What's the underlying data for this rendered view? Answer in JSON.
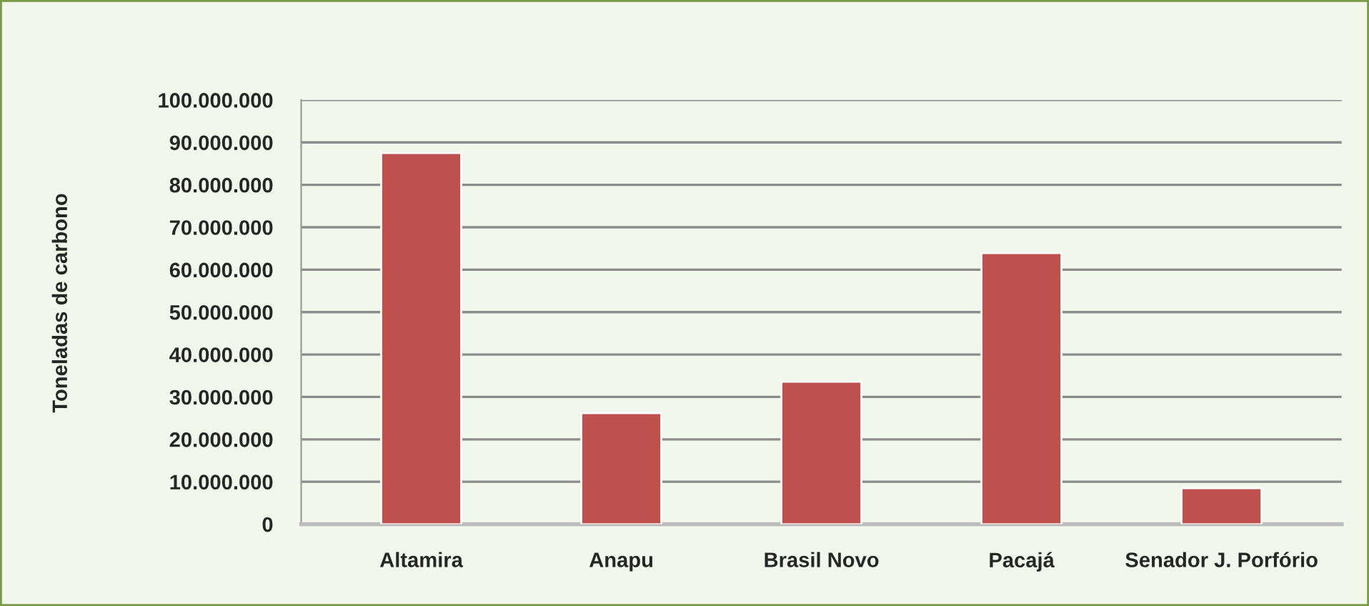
{
  "chart_data": {
    "type": "bar",
    "ylabel": "Toneladas de carbono",
    "categories": [
      "Altamira",
      "Anapu",
      "Brasil Novo",
      "Pacajá",
      "Senador J. Porfório"
    ],
    "values": [
      87500000,
      26200000,
      33600000,
      63900000,
      8500000
    ],
    "color": "#c0504d",
    "ylim": [
      0,
      100000000
    ],
    "yticks": [
      0,
      {
        "value": 10000000,
        "label": "10.000.000"
      },
      {
        "value": 20000000,
        "label": "20.000.000"
      },
      {
        "value": 30000000,
        "label": "30.000.000"
      },
      {
        "value": 40000000,
        "label": "40.000.000"
      },
      {
        "value": 50000000,
        "label": "50.000.000"
      },
      {
        "value": 60000000,
        "label": "60.000.000"
      },
      {
        "value": 70000000,
        "label": "70.000.000"
      },
      {
        "value": 80000000,
        "label": "80.000.000"
      },
      {
        "value": 90000000,
        "label": "90.000.000"
      },
      {
        "value": 100000000,
        "label": "100.000.000"
      }
    ],
    "grid": "y"
  }
}
